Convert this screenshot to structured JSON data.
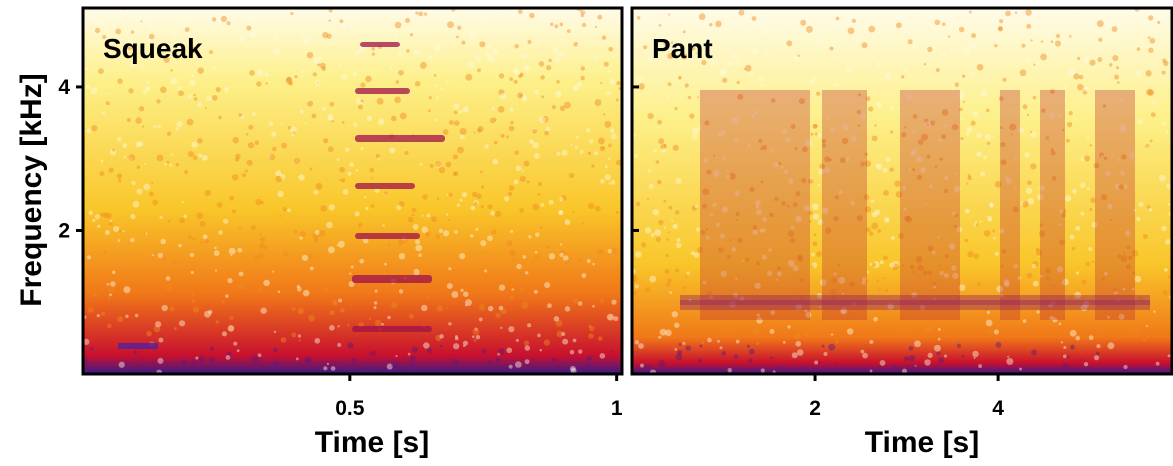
{
  "chart_data": [
    {
      "type": "spectrogram",
      "title": "Squeak",
      "x_label": "Time [s]",
      "y_label": "Frequency [kHz]",
      "xlim": [
        0,
        1.01
      ],
      "xticks": [
        0.5,
        1
      ],
      "ylim": [
        0,
        5.1
      ],
      "yticks": [
        2,
        4
      ],
      "colormap": [
        "#3a1a8a",
        "#c8102e",
        "#f07818",
        "#f9c62a",
        "#fdf08a",
        "#fffbe8"
      ]
    },
    {
      "type": "spectrogram",
      "title": "Pant",
      "x_label": "Time [s]",
      "xlim": [
        0,
        5.9
      ],
      "xticks": [
        2,
        4
      ],
      "ylim": [
        0,
        5.1
      ],
      "yticks": [
        2,
        4
      ],
      "colormap": [
        "#3a1a8a",
        "#c8102e",
        "#f07818",
        "#f9c62a",
        "#fdf08a",
        "#fffbe8"
      ]
    }
  ]
}
